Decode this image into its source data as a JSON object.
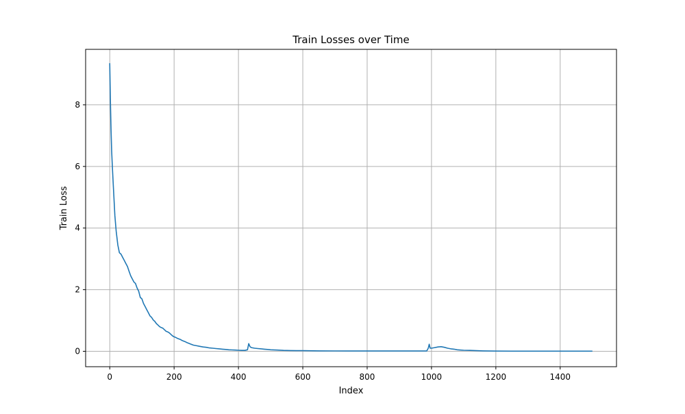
{
  "chart_data": {
    "type": "line",
    "title": "Train Losses over Time",
    "xlabel": "Index",
    "ylabel": "Train Loss",
    "xlim": [
      -75,
      1575
    ],
    "ylim": [
      -0.5,
      9.8
    ],
    "xticks": [
      0,
      200,
      400,
      600,
      800,
      1000,
      1200,
      1400
    ],
    "yticks": [
      0,
      2,
      4,
      6,
      8
    ],
    "xtick_labels": [
      "0",
      "200",
      "400",
      "600",
      "800",
      "1000",
      "1200",
      "1400"
    ],
    "ytick_labels": [
      "0",
      "2",
      "4",
      "6",
      "8"
    ],
    "grid": true,
    "legend": "none",
    "series": [
      {
        "color": "#1f77b4",
        "x": [
          0,
          2,
          4,
          6,
          8,
          10,
          13,
          16,
          20,
          25,
          30,
          35,
          40,
          45,
          50,
          55,
          60,
          65,
          70,
          75,
          80,
          85,
          90,
          95,
          100,
          105,
          110,
          115,
          120,
          125,
          130,
          135,
          140,
          145,
          150,
          155,
          160,
          165,
          170,
          175,
          180,
          185,
          190,
          195,
          200,
          205,
          210,
          215,
          220,
          225,
          230,
          235,
          240,
          245,
          250,
          255,
          260,
          270,
          280,
          290,
          300,
          310,
          320,
          330,
          340,
          350,
          360,
          370,
          380,
          390,
          400,
          410,
          420,
          428,
          432,
          436,
          440,
          450,
          460,
          470,
          480,
          490,
          500,
          520,
          540,
          560,
          580,
          600,
          650,
          700,
          750,
          800,
          850,
          900,
          950,
          985,
          990,
          993,
          996,
          1000,
          1010,
          1020,
          1030,
          1040,
          1050,
          1060,
          1070,
          1080,
          1090,
          1100,
          1120,
          1140,
          1160,
          1180,
          1200,
          1250,
          1300,
          1350,
          1400,
          1450,
          1500
        ],
        "y": [
          9.35,
          8.1,
          7.2,
          6.5,
          6.0,
          5.6,
          5.0,
          4.4,
          3.9,
          3.45,
          3.2,
          3.15,
          3.05,
          2.95,
          2.85,
          2.75,
          2.6,
          2.45,
          2.35,
          2.25,
          2.2,
          2.05,
          1.95,
          1.75,
          1.7,
          1.55,
          1.45,
          1.35,
          1.25,
          1.15,
          1.1,
          1.02,
          0.97,
          0.9,
          0.85,
          0.8,
          0.77,
          0.75,
          0.7,
          0.65,
          0.63,
          0.6,
          0.55,
          0.5,
          0.47,
          0.45,
          0.42,
          0.4,
          0.38,
          0.35,
          0.33,
          0.31,
          0.28,
          0.26,
          0.24,
          0.22,
          0.2,
          0.18,
          0.16,
          0.14,
          0.13,
          0.11,
          0.1,
          0.09,
          0.08,
          0.07,
          0.06,
          0.05,
          0.045,
          0.04,
          0.035,
          0.03,
          0.03,
          0.05,
          0.25,
          0.15,
          0.12,
          0.1,
          0.09,
          0.08,
          0.07,
          0.06,
          0.05,
          0.04,
          0.03,
          0.025,
          0.02,
          0.02,
          0.015,
          0.012,
          0.01,
          0.01,
          0.01,
          0.01,
          0.01,
          0.01,
          0.1,
          0.23,
          0.1,
          0.1,
          0.12,
          0.14,
          0.15,
          0.13,
          0.1,
          0.08,
          0.07,
          0.05,
          0.04,
          0.035,
          0.03,
          0.02,
          0.015,
          0.01,
          0.008,
          0.006,
          0.005,
          0.005,
          0.005,
          0.005,
          0.005
        ]
      }
    ]
  }
}
